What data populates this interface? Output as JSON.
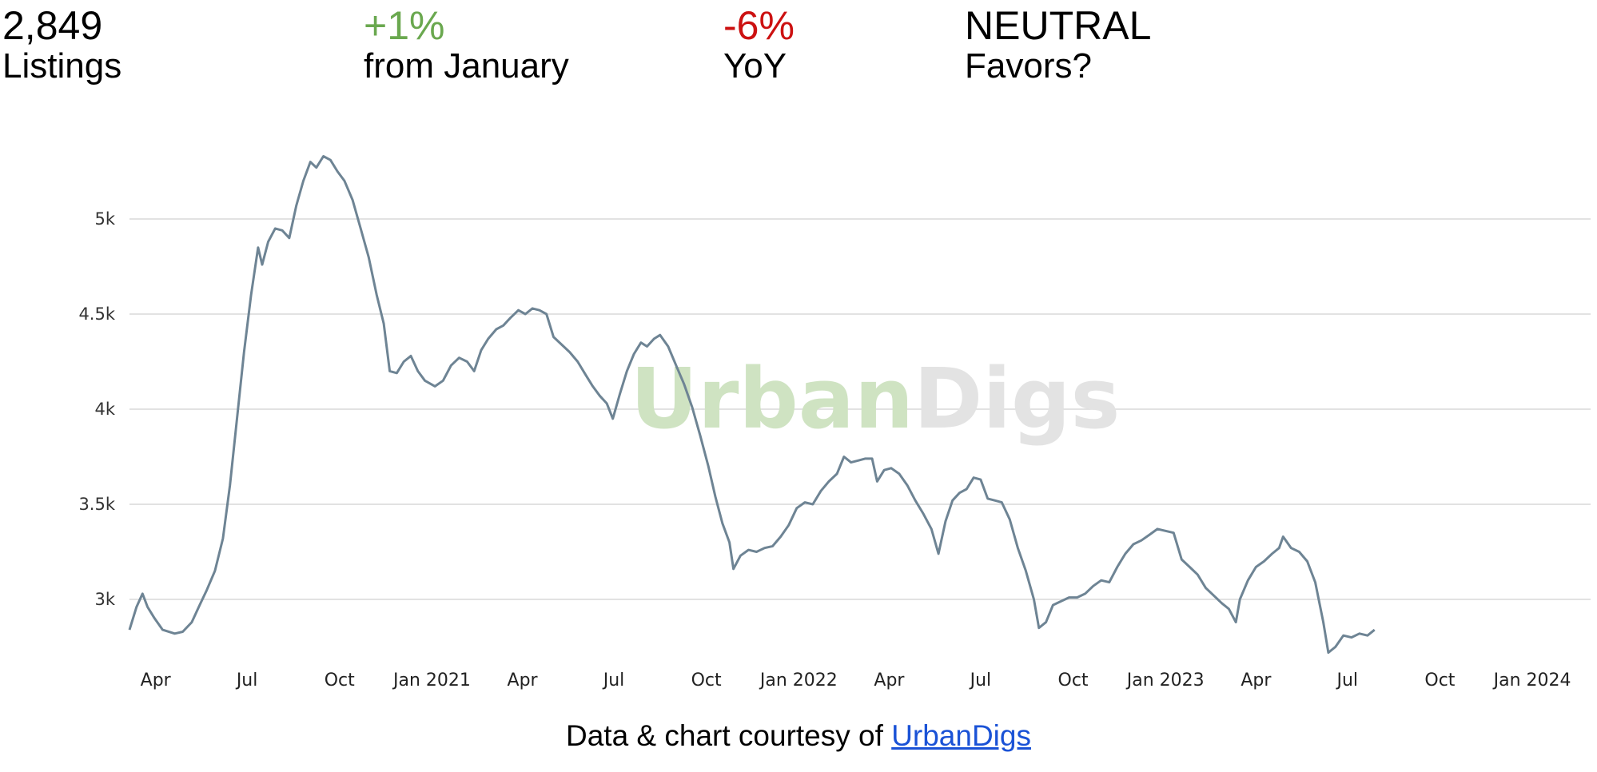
{
  "stats": [
    {
      "value": "2,849",
      "label": "Listings",
      "color": "#000000"
    },
    {
      "value": "+1%",
      "label": "from January",
      "color": "#6aa84f"
    },
    {
      "value": "-6%",
      "label": "YoY",
      "color": "#cc1111"
    },
    {
      "value": "NEUTRAL",
      "label": "Favors?",
      "color": "#000000"
    }
  ],
  "watermark": {
    "part1": "Urban",
    "part2": "Digs",
    "color1": "#cfe3c2",
    "color2": "#e3e3e3"
  },
  "credit": {
    "text": "Data & chart courtesy of ",
    "link": "UrbanDigs",
    "link_color": "#1a52d6"
  },
  "chart_data": {
    "type": "line",
    "line_color": "#6e8494",
    "grid": true,
    "y_ticks": [
      {
        "value": 3000,
        "label": "3k"
      },
      {
        "value": 3500,
        "label": "3.5k"
      },
      {
        "value": 4000,
        "label": "4k"
      },
      {
        "value": 4500,
        "label": "4.5k"
      },
      {
        "value": 5000,
        "label": "5k"
      }
    ],
    "x_ticks": [
      {
        "date": "2020-04-01",
        "label": "Apr"
      },
      {
        "date": "2020-07-01",
        "label": "Jul"
      },
      {
        "date": "2020-10-01",
        "label": "Oct"
      },
      {
        "date": "2021-01-01",
        "label": "Jan 2021"
      },
      {
        "date": "2021-04-01",
        "label": "Apr"
      },
      {
        "date": "2021-07-01",
        "label": "Jul"
      },
      {
        "date": "2021-10-01",
        "label": "Oct"
      },
      {
        "date": "2022-01-01",
        "label": "Jan 2022"
      },
      {
        "date": "2022-04-01",
        "label": "Apr"
      },
      {
        "date": "2022-07-01",
        "label": "Jul"
      },
      {
        "date": "2022-10-01",
        "label": "Oct"
      },
      {
        "date": "2023-01-01",
        "label": "Jan 2023"
      },
      {
        "date": "2023-04-01",
        "label": "Apr"
      },
      {
        "date": "2023-07-01",
        "label": "Jul"
      },
      {
        "date": "2023-10-01",
        "label": "Oct"
      },
      {
        "date": "2024-01-01",
        "label": "Jan 2024"
      }
    ],
    "series": [
      {
        "points": [
          [
            "2020-03-06",
            2840
          ],
          [
            "2020-03-13",
            2960
          ],
          [
            "2020-03-19",
            3030
          ],
          [
            "2020-03-24",
            2960
          ],
          [
            "2020-03-31",
            2900
          ],
          [
            "2020-04-08",
            2840
          ],
          [
            "2020-04-20",
            2820
          ],
          [
            "2020-04-28",
            2830
          ],
          [
            "2020-05-07",
            2880
          ],
          [
            "2020-05-14",
            2960
          ],
          [
            "2020-05-22",
            3050
          ],
          [
            "2020-05-30",
            3150
          ],
          [
            "2020-06-07",
            3320
          ],
          [
            "2020-06-14",
            3600
          ],
          [
            "2020-06-21",
            3950
          ],
          [
            "2020-06-28",
            4300
          ],
          [
            "2020-07-05",
            4600
          ],
          [
            "2020-07-12",
            4850
          ],
          [
            "2020-07-16",
            4760
          ],
          [
            "2020-07-22",
            4880
          ],
          [
            "2020-07-29",
            4950
          ],
          [
            "2020-08-05",
            4940
          ],
          [
            "2020-08-12",
            4900
          ],
          [
            "2020-08-19",
            5070
          ],
          [
            "2020-08-26",
            5200
          ],
          [
            "2020-09-02",
            5300
          ],
          [
            "2020-09-08",
            5270
          ],
          [
            "2020-09-15",
            5330
          ],
          [
            "2020-09-22",
            5310
          ],
          [
            "2020-09-29",
            5250
          ],
          [
            "2020-10-06",
            5200
          ],
          [
            "2020-10-14",
            5100
          ],
          [
            "2020-10-22",
            4950
          ],
          [
            "2020-10-30",
            4800
          ],
          [
            "2020-11-07",
            4600
          ],
          [
            "2020-11-14",
            4450
          ],
          [
            "2020-11-20",
            4200
          ],
          [
            "2020-11-27",
            4190
          ],
          [
            "2020-12-04",
            4250
          ],
          [
            "2020-12-11",
            4280
          ],
          [
            "2020-12-18",
            4200
          ],
          [
            "2020-12-25",
            4150
          ],
          [
            "2021-01-04",
            4120
          ],
          [
            "2021-01-12",
            4150
          ],
          [
            "2021-01-20",
            4230
          ],
          [
            "2021-01-28",
            4270
          ],
          [
            "2021-02-05",
            4250
          ],
          [
            "2021-02-12",
            4200
          ],
          [
            "2021-02-19",
            4310
          ],
          [
            "2021-02-26",
            4370
          ],
          [
            "2021-03-06",
            4420
          ],
          [
            "2021-03-13",
            4440
          ],
          [
            "2021-03-20",
            4480
          ],
          [
            "2021-03-28",
            4520
          ],
          [
            "2021-04-04",
            4500
          ],
          [
            "2021-04-11",
            4530
          ],
          [
            "2021-04-18",
            4520
          ],
          [
            "2021-04-25",
            4500
          ],
          [
            "2021-05-02",
            4380
          ],
          [
            "2021-05-10",
            4340
          ],
          [
            "2021-05-18",
            4300
          ],
          [
            "2021-05-26",
            4250
          ],
          [
            "2021-06-03",
            4180
          ],
          [
            "2021-06-10",
            4120
          ],
          [
            "2021-06-17",
            4070
          ],
          [
            "2021-06-24",
            4030
          ],
          [
            "2021-06-30",
            3950
          ],
          [
            "2021-07-07",
            4080
          ],
          [
            "2021-07-14",
            4200
          ],
          [
            "2021-07-21",
            4290
          ],
          [
            "2021-07-28",
            4350
          ],
          [
            "2021-08-03",
            4330
          ],
          [
            "2021-08-10",
            4370
          ],
          [
            "2021-08-16",
            4390
          ],
          [
            "2021-08-24",
            4330
          ],
          [
            "2021-09-01",
            4230
          ],
          [
            "2021-09-09",
            4130
          ],
          [
            "2021-09-17",
            4010
          ],
          [
            "2021-09-25",
            3860
          ],
          [
            "2021-10-03",
            3700
          ],
          [
            "2021-10-10",
            3540
          ],
          [
            "2021-10-17",
            3400
          ],
          [
            "2021-10-24",
            3300
          ],
          [
            "2021-10-28",
            3160
          ],
          [
            "2021-11-04",
            3230
          ],
          [
            "2021-11-12",
            3260
          ],
          [
            "2021-11-20",
            3250
          ],
          [
            "2021-11-28",
            3270
          ],
          [
            "2021-12-06",
            3280
          ],
          [
            "2021-12-14",
            3330
          ],
          [
            "2021-12-22",
            3390
          ],
          [
            "2021-12-30",
            3480
          ],
          [
            "2022-01-07",
            3510
          ],
          [
            "2022-01-15",
            3500
          ],
          [
            "2022-01-23",
            3570
          ],
          [
            "2022-01-31",
            3620
          ],
          [
            "2022-02-08",
            3660
          ],
          [
            "2022-02-15",
            3750
          ],
          [
            "2022-02-22",
            3720
          ],
          [
            "2022-03-01",
            3730
          ],
          [
            "2022-03-08",
            3740
          ],
          [
            "2022-03-15",
            3740
          ],
          [
            "2022-03-20",
            3620
          ],
          [
            "2022-03-27",
            3680
          ],
          [
            "2022-04-03",
            3690
          ],
          [
            "2022-04-11",
            3660
          ],
          [
            "2022-04-19",
            3600
          ],
          [
            "2022-04-27",
            3520
          ],
          [
            "2022-05-05",
            3450
          ],
          [
            "2022-05-13",
            3370
          ],
          [
            "2022-05-20",
            3240
          ],
          [
            "2022-05-27",
            3410
          ],
          [
            "2022-06-03",
            3520
          ],
          [
            "2022-06-10",
            3560
          ],
          [
            "2022-06-17",
            3580
          ],
          [
            "2022-06-24",
            3640
          ],
          [
            "2022-07-01",
            3630
          ],
          [
            "2022-07-08",
            3530
          ],
          [
            "2022-07-15",
            3520
          ],
          [
            "2022-07-22",
            3510
          ],
          [
            "2022-07-30",
            3420
          ],
          [
            "2022-08-07",
            3270
          ],
          [
            "2022-08-15",
            3150
          ],
          [
            "2022-08-23",
            3000
          ],
          [
            "2022-08-28",
            2850
          ],
          [
            "2022-09-04",
            2880
          ],
          [
            "2022-09-11",
            2970
          ],
          [
            "2022-09-19",
            2990
          ],
          [
            "2022-09-27",
            3010
          ],
          [
            "2022-10-05",
            3010
          ],
          [
            "2022-10-13",
            3030
          ],
          [
            "2022-10-21",
            3070
          ],
          [
            "2022-10-29",
            3100
          ],
          [
            "2022-11-06",
            3090
          ],
          [
            "2022-11-14",
            3170
          ],
          [
            "2022-11-22",
            3240
          ],
          [
            "2022-11-30",
            3290
          ],
          [
            "2022-12-08",
            3310
          ],
          [
            "2022-12-16",
            3340
          ],
          [
            "2022-12-24",
            3370
          ],
          [
            "2023-01-01",
            3360
          ],
          [
            "2023-01-09",
            3350
          ],
          [
            "2023-01-17",
            3210
          ],
          [
            "2023-01-25",
            3170
          ],
          [
            "2023-02-02",
            3130
          ],
          [
            "2023-02-10",
            3060
          ],
          [
            "2023-02-18",
            3020
          ],
          [
            "2023-02-26",
            2980
          ],
          [
            "2023-03-05",
            2950
          ],
          [
            "2023-03-12",
            2880
          ],
          [
            "2023-03-16",
            3000
          ],
          [
            "2023-03-24",
            3100
          ],
          [
            "2023-04-01",
            3170
          ],
          [
            "2023-04-09",
            3200
          ],
          [
            "2023-04-17",
            3240
          ],
          [
            "2023-04-24",
            3270
          ],
          [
            "2023-04-28",
            3330
          ],
          [
            "2023-05-06",
            3270
          ],
          [
            "2023-05-14",
            3250
          ],
          [
            "2023-05-22",
            3200
          ],
          [
            "2023-05-30",
            3090
          ],
          [
            "2023-06-07",
            2880
          ],
          [
            "2023-06-12",
            2720
          ],
          [
            "2023-06-19",
            2750
          ],
          [
            "2023-06-27",
            2810
          ],
          [
            "2023-07-05",
            2800
          ],
          [
            "2023-07-13",
            2820
          ],
          [
            "2023-07-21",
            2810
          ],
          [
            "2023-07-28",
            2840
          ]
        ]
      }
    ]
  }
}
